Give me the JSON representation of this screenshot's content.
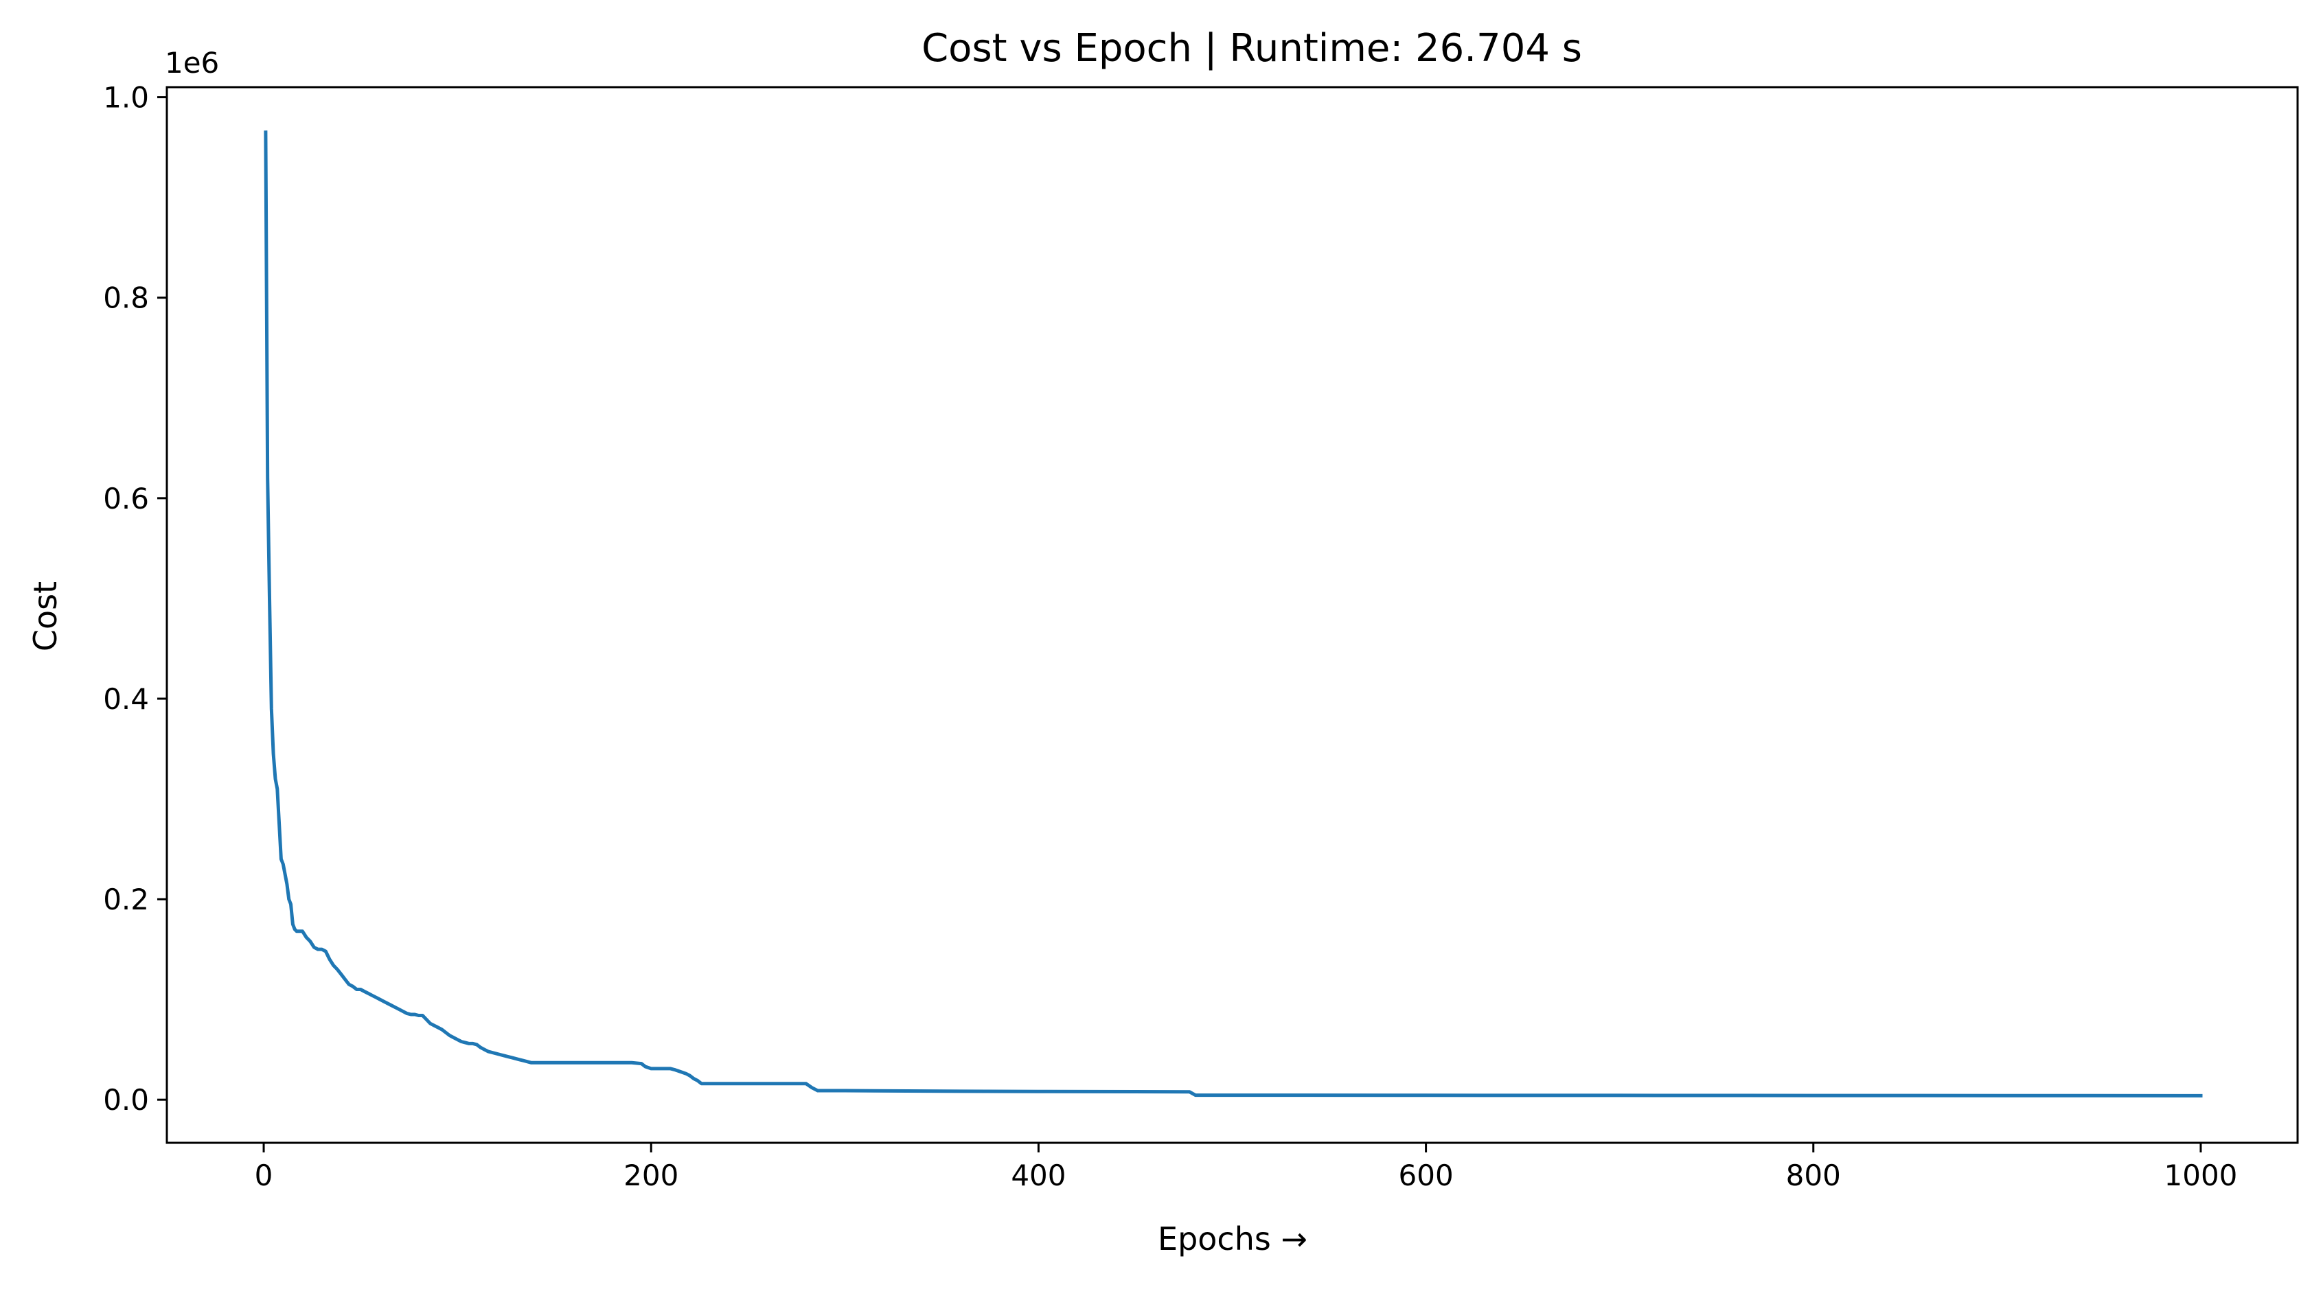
{
  "chart_data": {
    "type": "line",
    "title": "Cost vs Epoch | Runtime: 26.704 s",
    "xlabel": "Epochs  →",
    "ylabel": "Cost",
    "offset_label": "1e6",
    "xlim": [
      -50,
      1050
    ],
    "ylim": [
      -0.043,
      1.01
    ],
    "y_multiplier": 1000000,
    "grid": false,
    "legend": "none",
    "x_ticks": [
      0,
      200,
      400,
      600,
      800,
      1000
    ],
    "x_tick_labels": [
      "0",
      "200",
      "400",
      "600",
      "800",
      "1000"
    ],
    "y_ticks": [
      0.0,
      0.2,
      0.4,
      0.6,
      0.8,
      1.0
    ],
    "y_tick_labels": [
      "0.0",
      "0.2",
      "0.4",
      "0.6",
      "0.8",
      "1.0"
    ],
    "series": [
      {
        "color": "#1f77b4",
        "x": [
          1,
          2,
          3,
          4,
          5,
          6,
          7,
          8,
          9,
          10,
          11,
          12,
          13,
          14,
          15,
          16,
          17,
          18,
          20,
          22,
          24,
          26,
          28,
          30,
          32,
          34,
          36,
          38,
          40,
          42,
          44,
          46,
          48,
          50,
          52,
          54,
          56,
          58,
          60,
          62,
          64,
          66,
          68,
          70,
          72,
          74,
          76,
          78,
          80,
          82,
          84,
          86,
          88,
          90,
          92,
          94,
          96,
          98,
          100,
          102,
          104,
          106,
          108,
          110,
          112,
          114,
          116,
          118,
          120,
          122,
          124,
          126,
          128,
          130,
          132,
          134,
          136,
          138,
          140,
          145,
          150,
          160,
          170,
          180,
          190,
          195,
          197,
          200,
          205,
          210,
          212,
          215,
          218,
          220,
          222,
          224,
          226,
          228,
          240,
          260,
          280,
          283,
          286,
          290,
          300,
          350,
          400,
          450,
          478,
          481,
          485,
          500,
          600,
          700,
          800,
          900,
          1000
        ],
        "y": [
          0.965,
          0.62,
          0.5,
          0.39,
          0.345,
          0.32,
          0.31,
          0.275,
          0.24,
          0.235,
          0.225,
          0.215,
          0.2,
          0.195,
          0.175,
          0.17,
          0.168,
          0.168,
          0.168,
          0.162,
          0.158,
          0.152,
          0.15,
          0.15,
          0.148,
          0.14,
          0.134,
          0.13,
          0.125,
          0.12,
          0.115,
          0.113,
          0.11,
          0.11,
          0.108,
          0.106,
          0.104,
          0.102,
          0.1,
          0.098,
          0.096,
          0.094,
          0.092,
          0.09,
          0.088,
          0.086,
          0.085,
          0.085,
          0.084,
          0.084,
          0.08,
          0.076,
          0.074,
          0.072,
          0.07,
          0.067,
          0.064,
          0.062,
          0.06,
          0.058,
          0.057,
          0.056,
          0.056,
          0.055,
          0.052,
          0.05,
          0.048,
          0.047,
          0.046,
          0.045,
          0.044,
          0.043,
          0.042,
          0.041,
          0.04,
          0.039,
          0.038,
          0.037,
          0.037,
          0.037,
          0.037,
          0.037,
          0.037,
          0.037,
          0.037,
          0.036,
          0.033,
          0.031,
          0.031,
          0.031,
          0.03,
          0.028,
          0.026,
          0.024,
          0.021,
          0.019,
          0.016,
          0.016,
          0.016,
          0.016,
          0.016,
          0.012,
          0.009,
          0.009,
          0.009,
          0.0085,
          0.0082,
          0.008,
          0.0078,
          0.0045,
          0.0045,
          0.0045,
          0.0044,
          0.0043,
          0.0042,
          0.0041,
          0.004
        ]
      }
    ]
  }
}
